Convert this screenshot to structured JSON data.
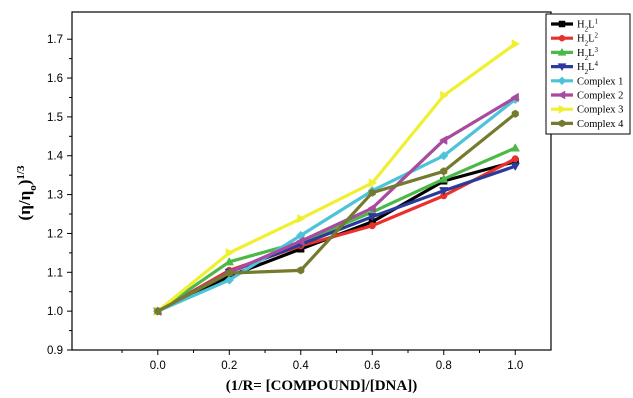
{
  "chart_data": {
    "type": "line",
    "xlabel": "(1/R= [COMPOUND]/[DNA])",
    "ylabel_main": "(η/η",
    "ylabel_sub": "o",
    "ylabel_tail": ")",
    "ylabel_sup": "1/3",
    "x": [
      0.0,
      0.2,
      0.4,
      0.6,
      0.8,
      1.0
    ],
    "x_tick_labels": [
      "0.0",
      "0.2",
      "0.4",
      "0.6",
      "0.8",
      "1.0"
    ],
    "y_tick_labels": [
      "0.9",
      "1.0",
      "1.1",
      "1.2",
      "1.3",
      "1.4",
      "1.5",
      "1.6",
      "1.7"
    ],
    "y_ticks": [
      0.9,
      1.0,
      1.1,
      1.2,
      1.3,
      1.4,
      1.5,
      1.6,
      1.7
    ],
    "xlim": [
      -0.24,
      1.1
    ],
    "ylim": [
      0.9,
      1.77
    ],
    "legend_position": "top-right",
    "series": [
      {
        "name_main": "H",
        "name_sub": "2",
        "name_mid": "L",
        "name_sup": "1",
        "color": "#000000",
        "marker": "square",
        "values": [
          1.0,
          1.09,
          1.16,
          1.23,
          1.335,
          1.385
        ]
      },
      {
        "name_main": "H",
        "name_sub": "2",
        "name_mid": "L",
        "name_sup": "2",
        "color": "#e8312a",
        "marker": "circle",
        "values": [
          1.0,
          1.105,
          1.168,
          1.22,
          1.297,
          1.392
        ]
      },
      {
        "name_main": "H",
        "name_sub": "2",
        "name_mid": "L",
        "name_sup": "3",
        "color": "#4cb848",
        "marker": "triangle-up",
        "values": [
          1.0,
          1.127,
          1.178,
          1.255,
          1.34,
          1.42
        ]
      },
      {
        "name_main": "H",
        "name_sub": "2",
        "name_mid": "L",
        "name_sup": "4",
        "color": "#2b3a9b",
        "marker": "triangle-down",
        "values": [
          1.0,
          1.1,
          1.172,
          1.243,
          1.31,
          1.373
        ]
      },
      {
        "name_main": "Complex 1",
        "color": "#4cc3d9",
        "marker": "diamond",
        "values": [
          1.0,
          1.08,
          1.195,
          1.31,
          1.4,
          1.545
        ]
      },
      {
        "name_main": "Complex 2",
        "color": "#a84b9e",
        "marker": "triangle-left",
        "values": [
          1.0,
          1.1,
          1.18,
          1.265,
          1.44,
          1.55
        ]
      },
      {
        "name_main": "Complex 3",
        "color": "#f0f032",
        "marker": "triangle-right",
        "values": [
          1.0,
          1.15,
          1.238,
          1.33,
          1.555,
          1.688
        ]
      },
      {
        "name_main": "Complex 4",
        "color": "#767a2e",
        "marker": "hexagon",
        "values": [
          1.0,
          1.098,
          1.105,
          1.305,
          1.36,
          1.508
        ]
      }
    ]
  }
}
